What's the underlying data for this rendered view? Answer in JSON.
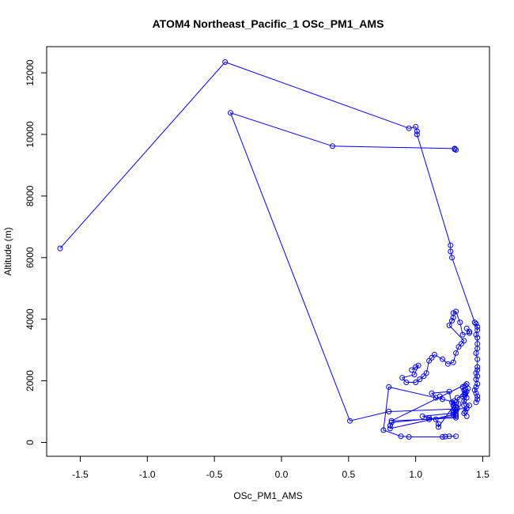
{
  "chart_data": {
    "type": "line",
    "title": "ATOM4 Northeast_Pacific_1 OSc_PM1_AMS",
    "xlabel": "OSc_PM1_AMS",
    "ylabel": "Altitude (m)",
    "xlim": [
      -1.75,
      1.55
    ],
    "ylim": [
      -450,
      12850
    ],
    "x_ticks": [
      -1.5,
      -1.0,
      -0.5,
      0.0,
      0.5,
      1.0,
      1.5
    ],
    "x_tick_labels": [
      "-1.5",
      "-1.0",
      "-0.5",
      "0.0",
      "0.5",
      "1.0",
      "1.5"
    ],
    "y_ticks": [
      0,
      2000,
      4000,
      6000,
      8000,
      10000,
      12000
    ],
    "y_tick_labels": [
      "0",
      "2000",
      "4000",
      "6000",
      "8000",
      "10000",
      "12000"
    ],
    "series_color": "#0000ff",
    "marker": "open-circle",
    "series": [
      {
        "x": [
          -1.65,
          -0.42,
          0.95,
          1.0,
          1.01,
          1.01,
          1.26,
          1.26,
          1.27,
          1.44,
          1.45,
          1.46,
          1.46,
          1.45,
          1.46,
          1.46,
          1.46,
          1.45,
          1.46,
          1.46,
          1.46,
          1.45,
          1.46,
          1.45,
          1.46,
          1.45,
          1.44,
          1.45,
          1.46,
          1.46,
          1.45
        ],
        "y": [
          6300,
          12350,
          10200,
          10250,
          10100,
          10000,
          6400,
          6200,
          6000,
          3900,
          3850,
          3750,
          3650,
          3500,
          3400,
          3200,
          3050,
          2900,
          2700,
          2450,
          2350,
          2250,
          2150,
          2050,
          1900,
          1800,
          1700,
          1600,
          1500,
          1400,
          1300
        ]
      },
      {
        "x": [
          1.29,
          1.3,
          1.29,
          0.38,
          -0.38,
          0.51,
          0.8,
          1.38,
          1.4,
          1.36,
          1.38,
          1.37,
          1.38,
          1.39,
          1.37,
          1.38,
          0.82,
          1.1,
          1.3,
          1.3,
          0.82,
          0.81,
          0.81,
          1.28,
          1.3,
          1.28,
          1.05,
          1.1,
          1.15,
          1.17,
          1.17,
          1.3,
          0.8,
          0.76,
          0.89,
          0.95,
          1.2,
          1.22,
          1.25,
          1.3
        ],
        "y": [
          9520,
          9500,
          9540,
          9620,
          10700,
          700,
          1000,
          1100,
          1200,
          1350,
          1450,
          1550,
          1650,
          1750,
          1850,
          1900,
          700,
          750,
          800,
          850,
          650,
          550,
          450,
          900,
          1000,
          950,
          850,
          800,
          750,
          600,
          500,
          1300,
          1800,
          400,
          200,
          180,
          180,
          190,
          200,
          200
        ]
      },
      {
        "x": [
          1.0,
          0.97,
          1.02,
          0.99,
          0.9,
          0.93,
          1.0,
          1.03,
          1.06,
          1.08,
          1.1,
          1.12,
          1.14,
          1.2,
          1.24,
          1.28,
          1.3,
          1.32,
          1.34,
          1.36,
          1.25,
          1.27,
          1.28,
          1.28,
          1.3,
          1.33,
          1.35,
          1.4,
          1.4,
          1.38
        ],
        "y": [
          2450,
          2350,
          2500,
          2200,
          2100,
          1950,
          1950,
          2050,
          2150,
          2250,
          2650,
          2750,
          2850,
          2700,
          2550,
          2600,
          2900,
          3100,
          3200,
          3300,
          3800,
          3950,
          4050,
          4200,
          4250,
          3900,
          3500,
          3550,
          3600,
          3700
        ]
      },
      {
        "x": [
          1.18,
          1.2,
          1.15,
          1.12,
          1.25,
          1.28,
          1.3,
          1.31,
          1.3,
          1.28,
          1.27,
          1.29,
          1.3,
          1.32,
          1.31,
          1.35,
          1.36,
          1.37,
          1.36,
          1.35,
          1.36,
          1.38,
          1.37,
          1.36,
          1.38
        ],
        "y": [
          1500,
          1400,
          1450,
          1600,
          1650,
          1000,
          1050,
          1100,
          1150,
          1200,
          1300,
          1350,
          900,
          1250,
          1450,
          1500,
          1550,
          1600,
          1700,
          1800,
          1200,
          1100,
          1000,
          950,
          850
        ]
      }
    ]
  }
}
